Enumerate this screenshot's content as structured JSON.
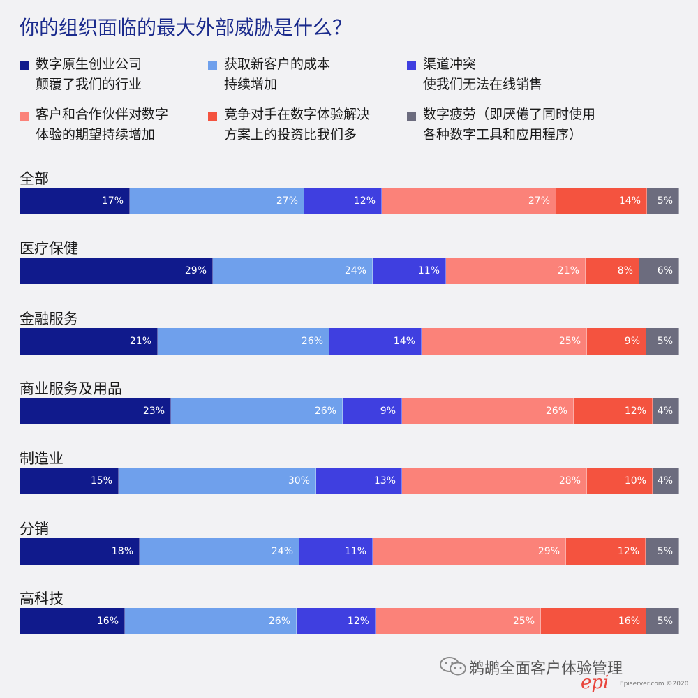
{
  "chart_data": {
    "type": "bar",
    "orientation": "horizontal",
    "stacked": true,
    "title": "你的组织面临的最大外部威胁是什么？",
    "series": [
      {
        "name": "数字原生创业公司颠覆了我们的行业",
        "name_lines": [
          "数字原生创业公司",
          "颠覆了我们的行业"
        ],
        "color": "#101a8c"
      },
      {
        "name": "获取新客户的成本持续增加",
        "name_lines": [
          "获取新客户的成本",
          "持续增加"
        ],
        "color": "#6fa0ec"
      },
      {
        "name": "渠道冲突使我们无法在线销售",
        "name_lines": [
          "渠道冲突",
          "使我们无法在线销售"
        ],
        "color": "#3f3fe0"
      },
      {
        "name": "客户和合作伙伴对数字体验的期望持续增加",
        "name_lines": [
          "客户和合作伙伴对数字",
          "体验的期望持续增加"
        ],
        "color": "#fb8279"
      },
      {
        "name": "竞争对手在数字体验解决方案上的投资比我们多",
        "name_lines": [
          "竞争对手在数字体验解决",
          "方案上的投资比我们多"
        ],
        "color": "#f4533f"
      },
      {
        "name": "数字疲劳（即厌倦了同时使用各种数字工具和应用程序）",
        "name_lines": [
          "数字疲劳（即厌倦了同时使用",
          "各种数字工具和应用程序）"
        ],
        "color": "#6c6c7e"
      }
    ],
    "categories": [
      "全部",
      "医疗保健",
      "金融服务",
      "商业服务及用品",
      "制造业",
      "分销",
      "高科技"
    ],
    "values": [
      [
        17,
        27,
        12,
        27,
        14,
        5
      ],
      [
        29,
        24,
        11,
        21,
        8,
        6
      ],
      [
        21,
        26,
        14,
        25,
        9,
        5
      ],
      [
        23,
        26,
        9,
        26,
        12,
        4
      ],
      [
        15,
        30,
        13,
        28,
        10,
        4
      ],
      [
        18,
        24,
        11,
        29,
        12,
        5
      ],
      [
        16,
        26,
        12,
        25,
        16,
        5
      ]
    ],
    "value_suffix": "%",
    "legend_position": "top"
  },
  "footer": {
    "watermark_text": "鹈鹕全面客户体验管理",
    "brand_logo_text": "epi",
    "brand_text": "Episerver.com ©2020",
    "icon": "wechat-icon"
  }
}
